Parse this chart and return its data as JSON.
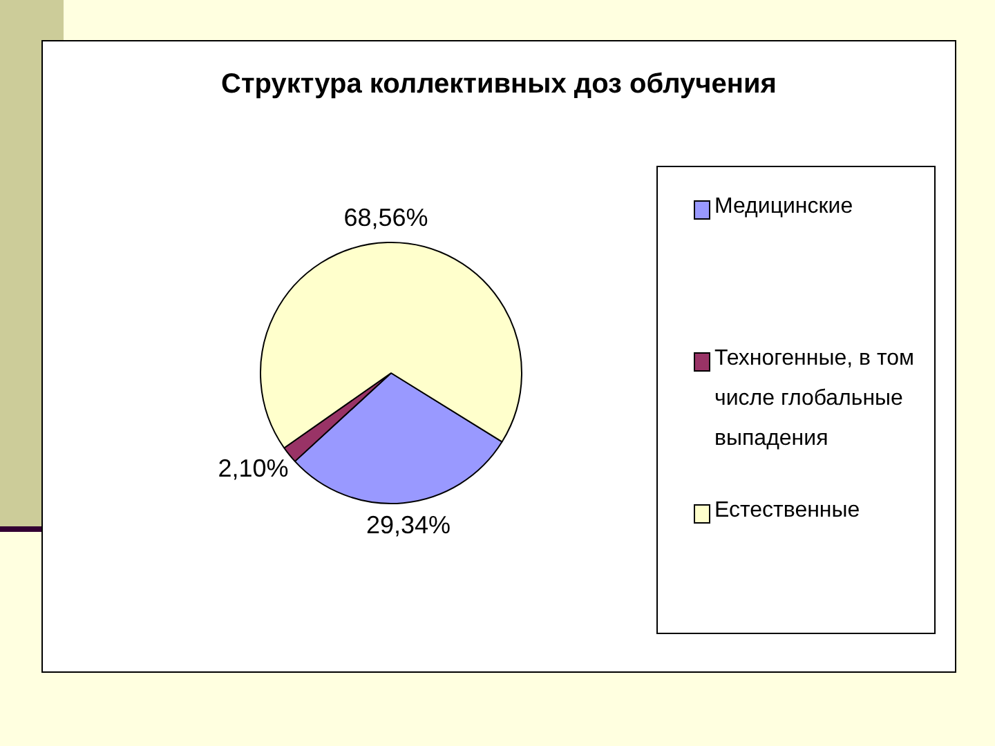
{
  "chart_data": {
    "type": "pie",
    "title": "Структура коллективных доз облучения",
    "categories": [
      "Медицинские",
      "Техногенные, в том числе глобальные выпадения",
      "Естественные"
    ],
    "values": [
      29.34,
      2.1,
      68.56
    ],
    "colors": [
      "#9999ff",
      "#993366",
      "#ffffcc"
    ],
    "value_labels": [
      "29,34%",
      "2,10%",
      "68,56%"
    ],
    "legend": "right"
  }
}
